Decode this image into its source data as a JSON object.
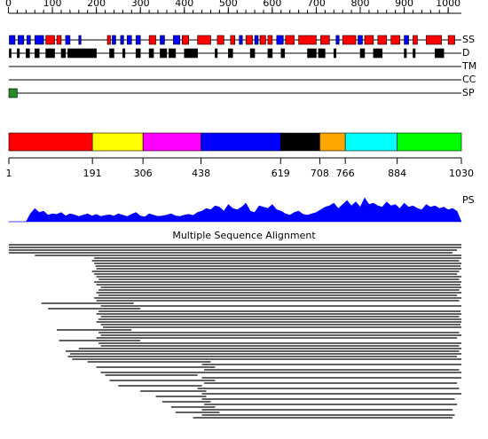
{
  "ruler": {
    "xlim": [
      1,
      1030
    ],
    "ticks": [
      0,
      100,
      200,
      300,
      400,
      500,
      600,
      700,
      800,
      900,
      1000
    ],
    "minor_ticks": [
      0,
      20,
      40,
      60,
      80,
      100,
      120,
      140,
      160,
      180,
      200,
      220,
      240,
      260,
      280,
      300,
      320,
      340,
      360,
      380,
      400,
      420,
      440,
      460,
      480,
      500,
      520,
      540,
      560,
      580,
      600,
      620,
      640,
      660,
      680,
      700,
      720,
      740,
      760,
      780,
      800,
      820,
      840,
      860,
      880,
      900,
      920,
      940,
      960,
      980,
      1000
    ]
  },
  "tracks": [
    {
      "label": "SS",
      "segments": [
        {
          "start": 2,
          "end": 15,
          "color": "#0000ff"
        },
        {
          "start": 22,
          "end": 35,
          "color": "#0000ff"
        },
        {
          "start": 42,
          "end": 50,
          "color": "#0000ff"
        },
        {
          "start": 60,
          "end": 80,
          "color": "#0000ff"
        },
        {
          "start": 85,
          "end": 105,
          "color": "#ff0000"
        },
        {
          "start": 110,
          "end": 120,
          "color": "#ff0000"
        },
        {
          "start": 130,
          "end": 140,
          "color": "#0000ff"
        },
        {
          "start": 160,
          "end": 165,
          "color": "#0000ff"
        },
        {
          "start": 225,
          "end": 232,
          "color": "#ff0000"
        },
        {
          "start": 236,
          "end": 244,
          "color": "#0000ff"
        },
        {
          "start": 255,
          "end": 262,
          "color": "#0000ff"
        },
        {
          "start": 270,
          "end": 280,
          "color": "#0000ff"
        },
        {
          "start": 290,
          "end": 300,
          "color": "#0000ff"
        },
        {
          "start": 320,
          "end": 335,
          "color": "#ff0000"
        },
        {
          "start": 345,
          "end": 355,
          "color": "#0000ff"
        },
        {
          "start": 375,
          "end": 390,
          "color": "#0000ff"
        },
        {
          "start": 395,
          "end": 410,
          "color": "#ff0000"
        },
        {
          "start": 430,
          "end": 460,
          "color": "#ff0000"
        },
        {
          "start": 475,
          "end": 490,
          "color": "#ff0000"
        },
        {
          "start": 505,
          "end": 515,
          "color": "#ff0000"
        },
        {
          "start": 525,
          "end": 532,
          "color": "#0000ff"
        },
        {
          "start": 540,
          "end": 555,
          "color": "#ff0000"
        },
        {
          "start": 560,
          "end": 568,
          "color": "#0000ff"
        },
        {
          "start": 572,
          "end": 585,
          "color": "#ff0000"
        },
        {
          "start": 590,
          "end": 600,
          "color": "#ff0000"
        },
        {
          "start": 610,
          "end": 625,
          "color": "#0000ff"
        },
        {
          "start": 630,
          "end": 650,
          "color": "#ff0000"
        },
        {
          "start": 660,
          "end": 700,
          "color": "#ff0000"
        },
        {
          "start": 710,
          "end": 730,
          "color": "#ff0000"
        },
        {
          "start": 745,
          "end": 752,
          "color": "#0000ff"
        },
        {
          "start": 760,
          "end": 790,
          "color": "#ff0000"
        },
        {
          "start": 795,
          "end": 805,
          "color": "#0000ff"
        },
        {
          "start": 810,
          "end": 830,
          "color": "#ff0000"
        },
        {
          "start": 840,
          "end": 860,
          "color": "#ff0000"
        },
        {
          "start": 870,
          "end": 890,
          "color": "#ff0000"
        },
        {
          "start": 900,
          "end": 910,
          "color": "#0000ff"
        },
        {
          "start": 920,
          "end": 930,
          "color": "#ff0000"
        },
        {
          "start": 950,
          "end": 985,
          "color": "#ff0000"
        },
        {
          "start": 1000,
          "end": 1015,
          "color": "#ff0000"
        }
      ]
    },
    {
      "label": "D",
      "segments": [
        {
          "start": 2,
          "end": 5,
          "color": "#000000"
        },
        {
          "start": 20,
          "end": 25,
          "color": "#000000"
        },
        {
          "start": 40,
          "end": 48,
          "color": "#000000"
        },
        {
          "start": 60,
          "end": 70,
          "color": "#000000"
        },
        {
          "start": 85,
          "end": 105,
          "color": "#000000"
        },
        {
          "start": 120,
          "end": 130,
          "color": "#000000"
        },
        {
          "start": 135,
          "end": 200,
          "color": "#000000"
        },
        {
          "start": 230,
          "end": 240,
          "color": "#000000"
        },
        {
          "start": 260,
          "end": 265,
          "color": "#000000"
        },
        {
          "start": 290,
          "end": 300,
          "color": "#000000"
        },
        {
          "start": 320,
          "end": 330,
          "color": "#000000"
        },
        {
          "start": 345,
          "end": 360,
          "color": "#000000"
        },
        {
          "start": 365,
          "end": 380,
          "color": "#000000"
        },
        {
          "start": 400,
          "end": 430,
          "color": "#000000"
        },
        {
          "start": 470,
          "end": 475,
          "color": "#000000"
        },
        {
          "start": 500,
          "end": 510,
          "color": "#000000"
        },
        {
          "start": 550,
          "end": 560,
          "color": "#000000"
        },
        {
          "start": 590,
          "end": 600,
          "color": "#000000"
        },
        {
          "start": 620,
          "end": 628,
          "color": "#000000"
        },
        {
          "start": 680,
          "end": 700,
          "color": "#000000"
        },
        {
          "start": 705,
          "end": 720,
          "color": "#000000"
        },
        {
          "start": 740,
          "end": 745,
          "color": "#000000"
        },
        {
          "start": 800,
          "end": 810,
          "color": "#000000"
        },
        {
          "start": 830,
          "end": 850,
          "color": "#000000"
        },
        {
          "start": 900,
          "end": 905,
          "color": "#000000"
        },
        {
          "start": 920,
          "end": 925,
          "color": "#000000"
        },
        {
          "start": 970,
          "end": 990,
          "color": "#000000"
        }
      ]
    },
    {
      "label": "TM",
      "segments": []
    },
    {
      "label": "CC",
      "segments": []
    },
    {
      "label": "SP",
      "segments": [
        {
          "start": 1,
          "end": 20,
          "color": "#228b22"
        }
      ]
    }
  ],
  "domains": {
    "boundaries": [
      1,
      191,
      306,
      438,
      619,
      708,
      766,
      884,
      1030
    ],
    "colors": [
      "#ff0000",
      "#ffff00",
      "#ff00ff",
      "#0000ff",
      "#000000",
      "#ffa500",
      "#00ffff",
      "#00ff00"
    ]
  },
  "profile": {
    "label": "PS",
    "ylim": [
      0,
      100
    ],
    "color": "#0000ff",
    "x": [
      0,
      10,
      20,
      30,
      40,
      50,
      60,
      70,
      80,
      90,
      100,
      110,
      120,
      130,
      140,
      150,
      160,
      170,
      180,
      190,
      200,
      210,
      220,
      230,
      240,
      250,
      260,
      270,
      280,
      290,
      300,
      310,
      320,
      330,
      340,
      350,
      360,
      370,
      380,
      390,
      400,
      410,
      420,
      430,
      440,
      450,
      460,
      470,
      480,
      490,
      500,
      510,
      520,
      530,
      540,
      550,
      560,
      570,
      580,
      590,
      600,
      610,
      620,
      630,
      640,
      650,
      660,
      670,
      680,
      690,
      700,
      710,
      720,
      730,
      740,
      750,
      760,
      770,
      780,
      790,
      800,
      810,
      820,
      830,
      840,
      850,
      860,
      870,
      880,
      890,
      900,
      910,
      920,
      930,
      940,
      950,
      960,
      970,
      980,
      990,
      1000,
      1010,
      1020,
      1030
    ],
    "values": [
      0,
      0,
      0,
      0,
      0,
      30,
      50,
      35,
      40,
      25,
      30,
      28,
      35,
      22,
      30,
      26,
      20,
      25,
      30,
      22,
      28,
      20,
      24,
      26,
      22,
      30,
      25,
      20,
      28,
      35,
      22,
      18,
      30,
      25,
      20,
      22,
      25,
      30,
      22,
      20,
      25,
      28,
      24,
      35,
      40,
      50,
      45,
      60,
      55,
      40,
      65,
      50,
      45,
      55,
      70,
      40,
      35,
      60,
      55,
      50,
      65,
      45,
      40,
      30,
      25,
      35,
      40,
      28,
      25,
      30,
      35,
      45,
      55,
      60,
      70,
      50,
      65,
      80,
      60,
      75,
      55,
      90,
      65,
      70,
      60,
      55,
      75,
      60,
      65,
      50,
      70,
      55,
      60,
      50,
      45,
      65,
      55,
      60,
      50,
      55,
      45,
      50,
      40,
      0
    ]
  },
  "alignment": {
    "title": "Multiple Sequence Alignment",
    "rows": [
      [
        1,
        1030
      ],
      [
        1,
        1030
      ],
      [
        1,
        1020
      ],
      [
        1,
        1010
      ],
      [
        60,
        1030
      ],
      [
        195,
        1030
      ],
      [
        190,
        1025
      ],
      [
        195,
        1030
      ],
      [
        198,
        1028
      ],
      [
        200,
        1030
      ],
      [
        190,
        1025
      ],
      [
        195,
        1020
      ],
      [
        200,
        1030
      ],
      [
        205,
        1025
      ],
      [
        195,
        1030
      ],
      [
        200,
        1028
      ],
      [
        210,
        1030
      ],
      [
        205,
        1025
      ],
      [
        200,
        1030
      ],
      [
        205,
        1020
      ],
      [
        195,
        1030
      ],
      [
        200,
        1025
      ],
      [
        75,
        285
      ],
      [
        210,
        1030
      ],
      [
        90,
        300
      ],
      [
        205,
        1028
      ],
      [
        200,
        1030
      ],
      [
        210,
        1025
      ],
      [
        205,
        1030
      ],
      [
        200,
        1030
      ],
      [
        210,
        1028
      ],
      [
        215,
        1030
      ],
      [
        110,
        280
      ],
      [
        205,
        1025
      ],
      [
        210,
        1030
      ],
      [
        200,
        1020
      ],
      [
        115,
        300
      ],
      [
        205,
        1030
      ],
      [
        210,
        1025
      ],
      [
        160,
        1030
      ],
      [
        130,
        1025
      ],
      [
        140,
        1030
      ],
      [
        135,
        1020
      ],
      [
        145,
        1030
      ],
      [
        180,
        460
      ],
      [
        440,
        1030
      ],
      [
        200,
        470
      ],
      [
        445,
        1025
      ],
      [
        210,
        1030
      ],
      [
        220,
        430
      ],
      [
        440,
        1030
      ],
      [
        230,
        470
      ],
      [
        445,
        1020
      ],
      [
        250,
        440
      ],
      [
        430,
        1025
      ],
      [
        300,
        450
      ],
      [
        440,
        1030
      ],
      [
        335,
        450
      ],
      [
        440,
        1015
      ],
      [
        350,
        460
      ],
      [
        445,
        1020
      ],
      [
        370,
        470
      ],
      [
        440,
        1010
      ],
      [
        380,
        480
      ],
      [
        440,
        1015
      ],
      [
        420,
        1010
      ]
    ]
  }
}
